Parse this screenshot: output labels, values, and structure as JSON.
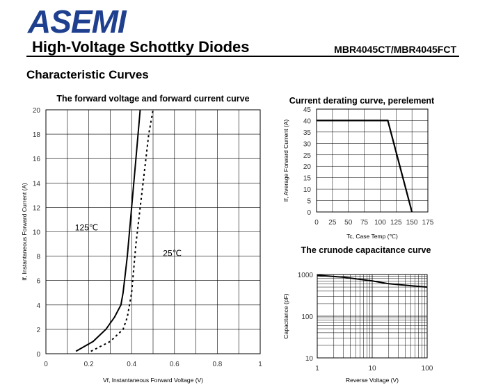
{
  "header": {
    "logo_text": "ASEMI",
    "title": "High-Voltage Schottky Diodes",
    "part_number": "MBR4045CT/MBR4045FCT",
    "section_title": "Characteristic Curves",
    "brand_color": "#1f3f8f"
  },
  "chart_data": [
    {
      "type": "line",
      "title": "The forward voltage and forward current curve",
      "xlabel": "Vf, Instantaneous Forward Voltage (V)",
      "ylabel": "If, Instantaneous Forward Current (A)",
      "xlim": [
        0,
        1
      ],
      "ylim": [
        0,
        20
      ],
      "x_ticks": [
        0,
        0.2,
        0.4,
        0.6,
        0.8,
        1
      ],
      "x_tick_labels": [
        "0",
        "0.2",
        "0.4",
        "0.6",
        "0.8",
        "1"
      ],
      "y_ticks": [
        0,
        2,
        4,
        6,
        8,
        10,
        12,
        14,
        16,
        18,
        20
      ],
      "grid": true,
      "series": [
        {
          "name": "125℃",
          "style": "solid",
          "x": [
            0.14,
            0.22,
            0.28,
            0.32,
            0.35,
            0.36,
            0.37,
            0.38,
            0.39,
            0.4,
            0.42,
            0.44
          ],
          "y": [
            0.2,
            1.0,
            2.0,
            3.0,
            4.0,
            5.0,
            6.5,
            8.0,
            10.0,
            12.0,
            16.0,
            20.0
          ]
        },
        {
          "name": "25℃",
          "style": "dashed",
          "x": [
            0.21,
            0.3,
            0.36,
            0.38,
            0.4,
            0.41,
            0.42,
            0.44,
            0.46,
            0.48,
            0.5
          ],
          "y": [
            0.2,
            1.0,
            2.0,
            3.0,
            5.0,
            7.0,
            9.0,
            12.0,
            15.0,
            18.0,
            20.0
          ]
        }
      ],
      "annotations": [
        "125℃",
        "25℃"
      ]
    },
    {
      "type": "line",
      "title": "Current derating curve, perelement",
      "xlabel": "Tc, Case Temp (℃)",
      "ylabel": "If, Average Forward Current (A)",
      "xlim": [
        0,
        175
      ],
      "ylim": [
        0,
        45
      ],
      "x_ticks": [
        0,
        25,
        50,
        75,
        100,
        125,
        150,
        175
      ],
      "y_ticks": [
        0,
        5,
        10,
        15,
        20,
        25,
        30,
        35,
        40,
        45
      ],
      "grid": true,
      "series": [
        {
          "style": "solid",
          "x": [
            0,
            112,
            150
          ],
          "y": [
            40,
            40,
            0
          ]
        }
      ]
    },
    {
      "type": "line",
      "title": "The crunode capacitance curve",
      "xlabel": "Reverse Voltage (V)",
      "ylabel": "Capacitance (pF)",
      "xscale": "log",
      "yscale": "log",
      "xlim": [
        1,
        100
      ],
      "ylim": [
        10,
        1000
      ],
      "x_ticks": [
        1,
        10,
        100
      ],
      "y_ticks": [
        10,
        100,
        1000
      ],
      "grid": true,
      "series": [
        {
          "style": "solid",
          "x": [
            1,
            3,
            10,
            20,
            50,
            100
          ],
          "y": [
            960,
            860,
            700,
            600,
            540,
            500
          ]
        }
      ]
    }
  ]
}
